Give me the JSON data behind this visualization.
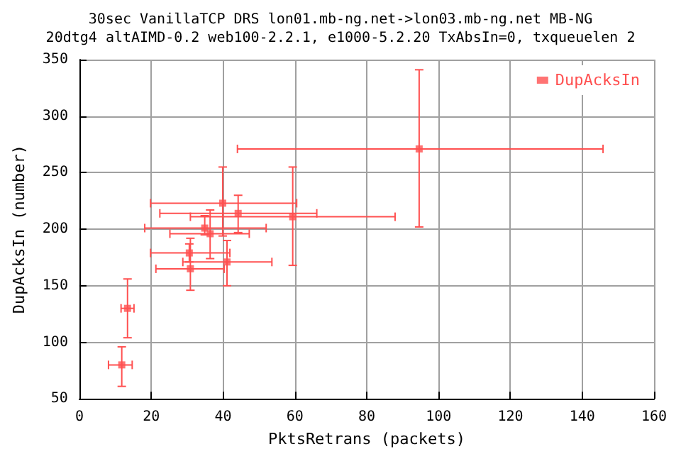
{
  "chart_data": {
    "type": "scatter",
    "title": "30sec VanillaTCP DRS lon01.mb-ng.net->lon03.mb-ng.net MB-NG",
    "subtitle": "20dtg4 altAIMD-0.2 web100-2.2.1, e1000-5.2.20 TxAbsIn=0, txqueuelen 2",
    "xlabel": "PktsRetrans (packets)",
    "ylabel": "DupAcksIn (number)",
    "series": [
      {
        "name": "DupAcksIn",
        "color": "#ff5050",
        "x": [
          11.8,
          13.4,
          30.9,
          30.6,
          41.1,
          34.9,
          36.4,
          39.9,
          44.2,
          59.4,
          94.6
        ],
        "values": [
          80,
          130,
          165,
          179,
          171,
          201,
          196,
          223,
          214,
          211,
          271
        ],
        "errors": [
          [
            61,
            96
          ],
          [
            104,
            156
          ],
          [
            146,
            192
          ],
          [
            171,
            187
          ],
          [
            150,
            190
          ],
          [
            195,
            212
          ],
          [
            174,
            217
          ],
          [
            194,
            255
          ],
          [
            197,
            230
          ],
          [
            168,
            255
          ],
          [
            202,
            341
          ]
        ],
        "xerrors": [
          [
            8.1,
            14.7
          ],
          [
            11.6,
            15.2
          ],
          [
            21.3,
            40.3
          ],
          [
            19.8,
            41.9
          ],
          [
            28.8,
            53.6
          ],
          [
            18.2,
            52
          ],
          [
            25.2,
            47.3
          ],
          [
            19.8,
            60.5
          ],
          [
            22.4,
            66.1
          ],
          [
            30.9,
            87.9
          ],
          [
            44,
            145.8
          ]
        ]
      }
    ],
    "xlim": [
      0,
      160
    ],
    "xticks": [
      0,
      20,
      40,
      60,
      80,
      100,
      120,
      140,
      160
    ],
    "ylim": [
      50,
      350
    ],
    "yticks": [
      50,
      100,
      150,
      200,
      250,
      300,
      350
    ],
    "grid": true,
    "legend": "top right",
    "marker": "square"
  }
}
